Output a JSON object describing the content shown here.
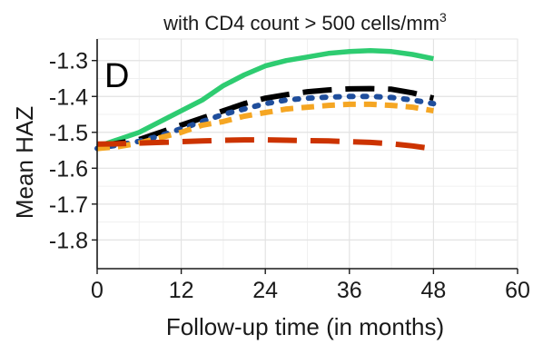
{
  "chart_data": {
    "type": "line",
    "title": "with CD4 count > 500 cells/mm",
    "title_superscript": "3",
    "panel_label": "D",
    "xlabel": "Follow-up time (in months)",
    "ylabel": "Mean HAZ",
    "xlim": [
      0,
      60
    ],
    "ylim": [
      -1.88,
      -1.24
    ],
    "xticks": [
      0,
      12,
      24,
      36,
      48,
      60
    ],
    "xtick_labels": [
      "0",
      "12",
      "24",
      "36",
      "48",
      "60"
    ],
    "yticks": [
      -1.3,
      -1.4,
      -1.5,
      -1.6,
      -1.7,
      -1.8
    ],
    "ytick_labels": [
      "-1.3",
      "-1.4",
      "-1.5",
      "-1.6",
      "-1.7",
      "-1.8"
    ],
    "grid": true,
    "legend": "none",
    "series": [
      {
        "color": "#2ecc71",
        "style": "solid",
        "x": [
          0,
          3,
          6,
          9,
          12,
          15,
          18,
          21,
          24,
          27,
          30,
          33,
          36,
          39,
          42,
          45,
          48
        ],
        "y": [
          -1.54,
          -1.52,
          -1.5,
          -1.47,
          -1.44,
          -1.41,
          -1.37,
          -1.34,
          -1.315,
          -1.3,
          -1.29,
          -1.28,
          -1.275,
          -1.272,
          -1.275,
          -1.283,
          -1.295
        ]
      },
      {
        "color": "#000000",
        "style": "longdash",
        "x": [
          0,
          3,
          6,
          9,
          12,
          15,
          18,
          21,
          24,
          27,
          30,
          33,
          36,
          39,
          42,
          45,
          48
        ],
        "y": [
          -1.54,
          -1.53,
          -1.52,
          -1.5,
          -1.48,
          -1.46,
          -1.44,
          -1.42,
          -1.405,
          -1.395,
          -1.387,
          -1.382,
          -1.379,
          -1.378,
          -1.38,
          -1.39,
          -1.405
        ]
      },
      {
        "color": "#1f4e9c",
        "style": "dotted",
        "x": [
          0,
          3,
          6,
          9,
          12,
          15,
          18,
          21,
          24,
          27,
          30,
          33,
          36,
          39,
          42,
          45,
          48
        ],
        "y": [
          -1.545,
          -1.535,
          -1.525,
          -1.51,
          -1.49,
          -1.47,
          -1.45,
          -1.435,
          -1.42,
          -1.41,
          -1.405,
          -1.402,
          -1.4,
          -1.4,
          -1.403,
          -1.41,
          -1.42
        ]
      },
      {
        "color": "#f5a623",
        "style": "dashed",
        "x": [
          0,
          3,
          6,
          9,
          12,
          15,
          18,
          21,
          24,
          27,
          30,
          33,
          36,
          39,
          42,
          45,
          48
        ],
        "y": [
          -1.545,
          -1.54,
          -1.53,
          -1.515,
          -1.5,
          -1.48,
          -1.47,
          -1.455,
          -1.445,
          -1.435,
          -1.43,
          -1.425,
          -1.422,
          -1.422,
          -1.425,
          -1.43,
          -1.44
        ]
      },
      {
        "color": "#cc3300",
        "style": "longdash",
        "x": [
          0,
          3,
          6,
          9,
          12,
          15,
          18,
          21,
          24,
          27,
          30,
          33,
          36,
          39,
          42,
          45,
          48
        ],
        "y": [
          -1.533,
          -1.532,
          -1.53,
          -1.528,
          -1.526,
          -1.524,
          -1.522,
          -1.521,
          -1.521,
          -1.522,
          -1.523,
          -1.524,
          -1.526,
          -1.528,
          -1.532,
          -1.538,
          -1.546
        ]
      }
    ]
  }
}
